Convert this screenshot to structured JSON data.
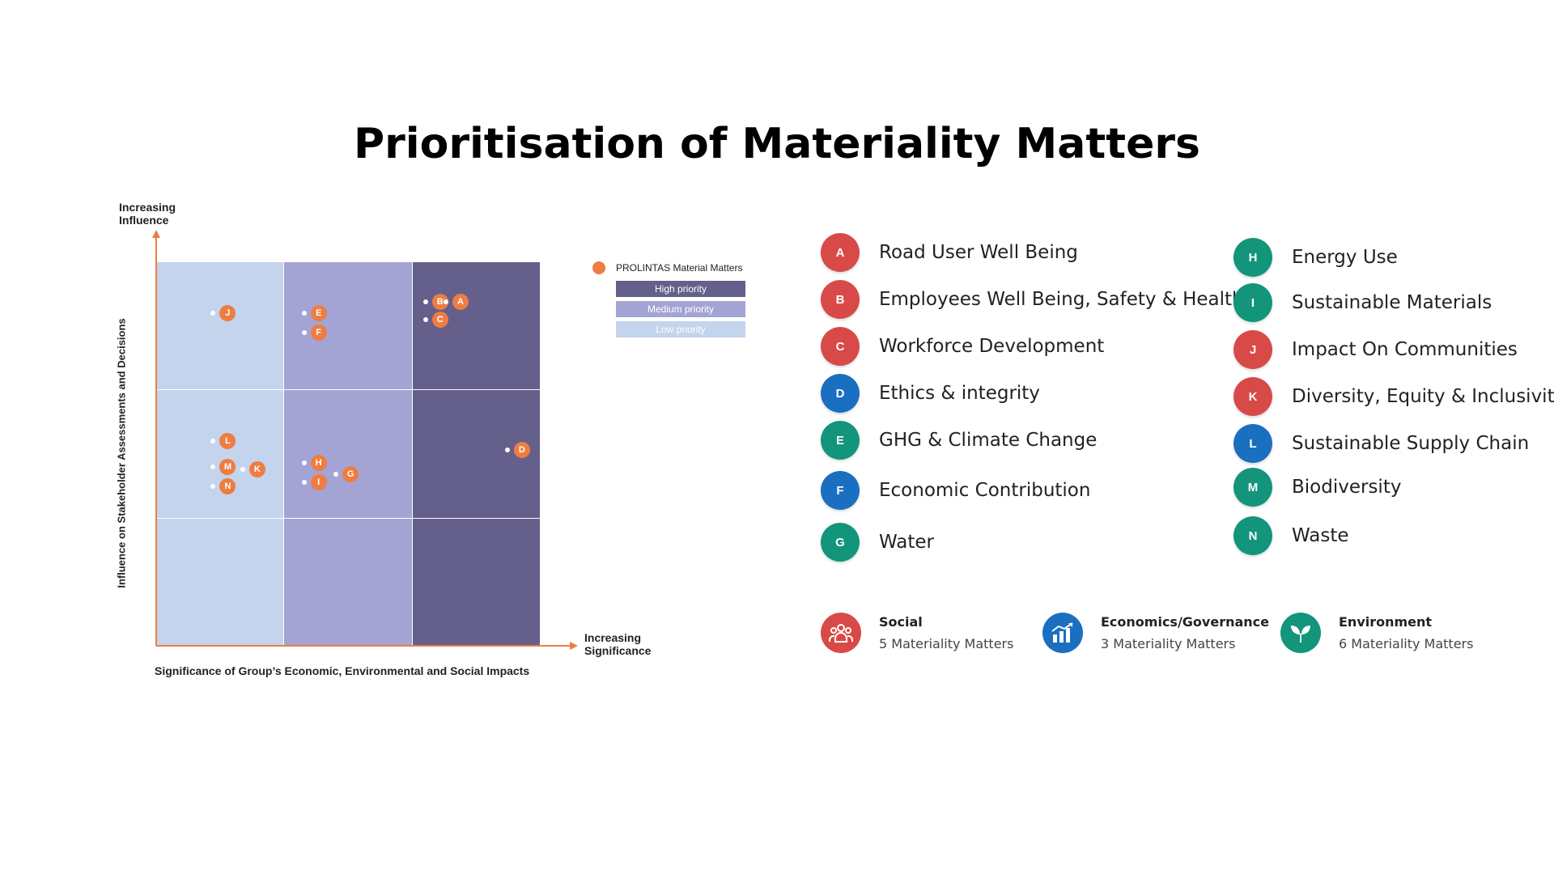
{
  "title": "Prioritisation of Materiality Matters",
  "matrix": {
    "y_top_label_line1": "Increasing",
    "y_top_label_line2": "Influence",
    "y_axis_label": "Influence on Stakeholder Assessments and Decisions",
    "x_right_label_line1": "Increasing",
    "x_right_label_line2": "Significance",
    "x_axis_label": "Significance of Group’s Economic, Environmental and Social Impacts",
    "column_priority": [
      "low",
      "medium",
      "high"
    ],
    "points": [
      {
        "letter": "J",
        "significance": 0.56,
        "influence": 2.6
      },
      {
        "letter": "E",
        "significance": 1.27,
        "influence": 2.6
      },
      {
        "letter": "F",
        "significance": 1.27,
        "influence": 2.45
      },
      {
        "letter": "B",
        "significance": 2.22,
        "influence": 2.69
      },
      {
        "letter": "A",
        "significance": 2.38,
        "influence": 2.69
      },
      {
        "letter": "C",
        "significance": 2.22,
        "influence": 2.55
      },
      {
        "letter": "L",
        "significance": 0.56,
        "influence": 1.6
      },
      {
        "letter": "M",
        "significance": 0.56,
        "influence": 1.4
      },
      {
        "letter": "K",
        "significance": 0.79,
        "influence": 1.38
      },
      {
        "letter": "N",
        "significance": 0.56,
        "influence": 1.25
      },
      {
        "letter": "H",
        "significance": 1.27,
        "influence": 1.43
      },
      {
        "letter": "I",
        "significance": 1.27,
        "influence": 1.28
      },
      {
        "letter": "G",
        "significance": 1.52,
        "influence": 1.34
      },
      {
        "letter": "D",
        "significance": 2.86,
        "influence": 1.53
      }
    ]
  },
  "legend": {
    "material_matters": "PROLINTAS Material Matters",
    "high": "High priority",
    "medium": "Medium priority",
    "low": "Low priority",
    "marker_color": "#ee7d42"
  },
  "matters_left": [
    {
      "letter": "A",
      "label": "Road User Well Being",
      "color": "#d84a48"
    },
    {
      "letter": "B",
      "label": "Employees Well Being, Safety & Health",
      "color": "#d84a48"
    },
    {
      "letter": "C",
      "label": "Workforce Development",
      "color": "#d84a48"
    },
    {
      "letter": "D",
      "label": "Ethics & integrity",
      "color": "#1a6fc0"
    },
    {
      "letter": "E",
      "label": "GHG & Climate Change",
      "color": "#12957a"
    },
    {
      "letter": "F",
      "label": "Economic Contribution",
      "color": "#1a6fc0"
    },
    {
      "letter": "G",
      "label": "Water",
      "color": "#12957a"
    }
  ],
  "matters_right": [
    {
      "letter": "H",
      "label": "Energy Use",
      "color": "#12957a"
    },
    {
      "letter": "I",
      "label": "Sustainable Materials",
      "color": "#12957a"
    },
    {
      "letter": "J",
      "label": "Impact On Communities",
      "color": "#d84a48"
    },
    {
      "letter": "K",
      "label": "Diversity, Equity & Inclusivity",
      "color": "#d84a48"
    },
    {
      "letter": "L",
      "label": "Sustainable Supply Chain",
      "color": "#1a6fc0"
    },
    {
      "letter": "M",
      "label": "Biodiversity",
      "color": "#12957a"
    },
    {
      "letter": "N",
      "label": "Waste",
      "color": "#12957a"
    }
  ],
  "categories": [
    {
      "title": "Social",
      "count": "5 Materiality Matters",
      "color": "#d84a48",
      "icon": "people-icon"
    },
    {
      "title": "Economics/Governance",
      "count": "3 Materiality Matters",
      "color": "#1a6fc0",
      "icon": "chart-icon"
    },
    {
      "title": "Environment",
      "count": "6 Materiality Matters",
      "color": "#12957a",
      "icon": "sprout-icon"
    }
  ]
}
